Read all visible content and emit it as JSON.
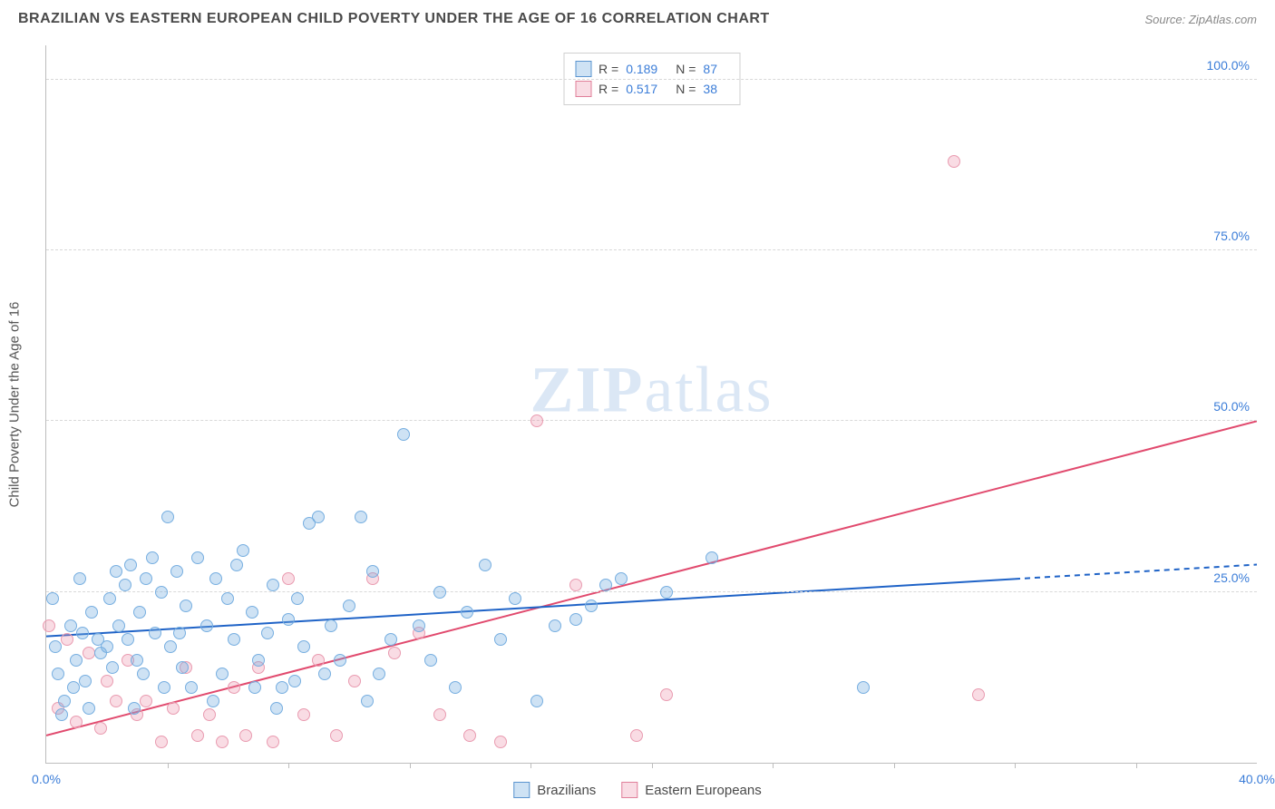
{
  "header": {
    "title": "BRAZILIAN VS EASTERN EUROPEAN CHILD POVERTY UNDER THE AGE OF 16 CORRELATION CHART",
    "source": "Source: ZipAtlas.com"
  },
  "watermark": {
    "prefix": "ZIP",
    "suffix": "atlas"
  },
  "axes": {
    "y_label": "Child Poverty Under the Age of 16",
    "x_min": 0,
    "x_max": 40,
    "y_min": 0,
    "y_max": 105,
    "x_ticks": [
      0,
      40
    ],
    "x_tick_labels": [
      "0.0%",
      "40.0%"
    ],
    "x_minor_ticks": [
      4,
      8,
      12,
      16,
      20,
      24,
      28,
      32,
      36
    ],
    "y_gridlines": [
      25,
      50,
      75,
      100
    ],
    "y_tick_labels": [
      "25.0%",
      "50.0%",
      "75.0%",
      "100.0%"
    ]
  },
  "series": {
    "brazilians": {
      "label": "Brazilians",
      "fill": "rgba(116,172,223,0.35)",
      "stroke": "#5a94cf",
      "stroke_ring": "#76aee0",
      "r_label": "R =",
      "r_value": "0.189",
      "n_label": "N =",
      "n_value": "87",
      "trend": {
        "y_at_xmin": 18.5,
        "y_at_xmax": 29.0,
        "solid_until_x": 32,
        "color": "#1f63c7",
        "width": 2,
        "dash": "6 5"
      },
      "point_radius": 7,
      "points": [
        [
          0.3,
          17
        ],
        [
          0.6,
          9
        ],
        [
          0.8,
          20
        ],
        [
          1.0,
          15
        ],
        [
          1.2,
          19
        ],
        [
          1.3,
          12
        ],
        [
          1.5,
          22
        ],
        [
          1.7,
          18
        ],
        [
          1.8,
          16
        ],
        [
          2.0,
          17
        ],
        [
          2.1,
          24
        ],
        [
          2.3,
          28
        ],
        [
          2.4,
          20
        ],
        [
          2.6,
          26
        ],
        [
          2.7,
          18
        ],
        [
          2.8,
          29
        ],
        [
          3.0,
          15
        ],
        [
          3.1,
          22
        ],
        [
          3.3,
          27
        ],
        [
          3.5,
          30
        ],
        [
          3.6,
          19
        ],
        [
          3.8,
          25
        ],
        [
          4.0,
          36
        ],
        [
          4.1,
          17
        ],
        [
          4.3,
          28
        ],
        [
          4.5,
          14
        ],
        [
          4.6,
          23
        ],
        [
          5.0,
          30
        ],
        [
          5.3,
          20
        ],
        [
          5.6,
          27
        ],
        [
          5.8,
          13
        ],
        [
          6.0,
          24
        ],
        [
          6.2,
          18
        ],
        [
          6.5,
          31
        ],
        [
          6.8,
          22
        ],
        [
          7.0,
          15
        ],
        [
          7.3,
          19
        ],
        [
          7.5,
          26
        ],
        [
          7.8,
          11
        ],
        [
          8.0,
          21
        ],
        [
          8.3,
          24
        ],
        [
          8.5,
          17
        ],
        [
          8.7,
          35
        ],
        [
          9.0,
          36
        ],
        [
          9.4,
          20
        ],
        [
          9.7,
          15
        ],
        [
          10.0,
          23
        ],
        [
          10.4,
          36
        ],
        [
          10.6,
          9
        ],
        [
          10.8,
          28
        ],
        [
          11.0,
          13
        ],
        [
          11.4,
          18
        ],
        [
          11.8,
          48
        ],
        [
          12.3,
          20
        ],
        [
          12.7,
          15
        ],
        [
          13.0,
          25
        ],
        [
          13.5,
          11
        ],
        [
          13.9,
          22
        ],
        [
          14.5,
          29
        ],
        [
          15.0,
          18
        ],
        [
          15.5,
          24
        ],
        [
          16.2,
          9
        ],
        [
          16.8,
          20
        ],
        [
          17.5,
          21
        ],
        [
          18.0,
          23
        ],
        [
          18.5,
          26
        ],
        [
          19.0,
          27
        ],
        [
          20.5,
          25
        ],
        [
          22.0,
          30
        ],
        [
          27.0,
          11
        ],
        [
          8.2,
          12
        ],
        [
          9.2,
          13
        ],
        [
          5.5,
          9
        ],
        [
          6.9,
          11
        ],
        [
          4.8,
          11
        ],
        [
          3.9,
          11
        ],
        [
          2.9,
          8
        ],
        [
          1.4,
          8
        ],
        [
          0.5,
          7
        ],
        [
          0.2,
          24
        ],
        [
          0.4,
          13
        ],
        [
          0.9,
          11
        ],
        [
          1.1,
          27
        ],
        [
          2.2,
          14
        ],
        [
          3.2,
          13
        ],
        [
          4.4,
          19
        ],
        [
          6.3,
          29
        ],
        [
          7.6,
          8
        ]
      ]
    },
    "eastern_europeans": {
      "label": "Eastern Europeans",
      "fill": "rgba(236,140,165,0.30)",
      "stroke": "#e07f9a",
      "stroke_ring": "#e99bb0",
      "r_label": "R =",
      "r_value": "0.517",
      "n_label": "N =",
      "n_value": "38",
      "trend": {
        "y_at_xmin": 4.0,
        "y_at_xmax": 50.0,
        "solid_until_x": 40,
        "color": "#e14a6e",
        "width": 2,
        "dash": null
      },
      "point_radius": 7,
      "points": [
        [
          0.1,
          20
        ],
        [
          0.4,
          8
        ],
        [
          0.7,
          18
        ],
        [
          1.0,
          6
        ],
        [
          1.4,
          16
        ],
        [
          1.8,
          5
        ],
        [
          2.0,
          12
        ],
        [
          2.3,
          9
        ],
        [
          2.7,
          15
        ],
        [
          3.0,
          7
        ],
        [
          3.3,
          9
        ],
        [
          3.8,
          3
        ],
        [
          4.2,
          8
        ],
        [
          4.6,
          14
        ],
        [
          5.0,
          4
        ],
        [
          5.4,
          7
        ],
        [
          5.8,
          3
        ],
        [
          6.2,
          11
        ],
        [
          6.6,
          4
        ],
        [
          7.0,
          14
        ],
        [
          7.5,
          3
        ],
        [
          8.0,
          27
        ],
        [
          8.5,
          7
        ],
        [
          9.0,
          15
        ],
        [
          9.6,
          4
        ],
        [
          10.2,
          12
        ],
        [
          10.8,
          27
        ],
        [
          11.5,
          16
        ],
        [
          12.3,
          19
        ],
        [
          13.0,
          7
        ],
        [
          14.0,
          4
        ],
        [
          15.0,
          3
        ],
        [
          16.2,
          50
        ],
        [
          17.5,
          26
        ],
        [
          19.5,
          4
        ],
        [
          20.5,
          10
        ],
        [
          30.0,
          88
        ],
        [
          30.8,
          10
        ]
      ]
    }
  },
  "style": {
    "background": "#ffffff",
    "grid_color": "#d8d8d8",
    "axis_color": "#bdbdbd",
    "title_color": "#4a4a4a",
    "source_color": "#888888",
    "tick_label_color": "#3b7dd8",
    "legend_border": "#cfcfcf"
  }
}
